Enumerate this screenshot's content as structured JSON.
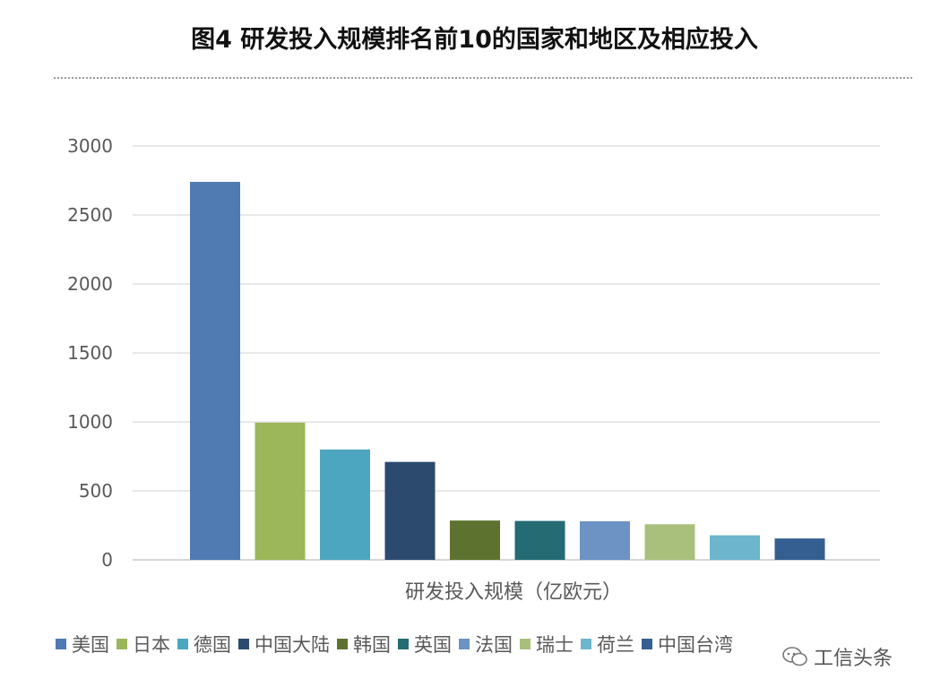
{
  "title": "图4 研发投入规模排名前10的国家和地区及相应投入",
  "watermark": "工信头条",
  "chart_data": {
    "type": "bar",
    "title": "图4 研发投入规模排名前10的国家和地区及相应投入",
    "xlabel": "研发投入规模（亿欧元）",
    "ylabel": "",
    "ylim": [
      0,
      3000
    ],
    "yticks": [
      "0",
      "500",
      "1000",
      "1500",
      "2000",
      "2500",
      "3000"
    ],
    "grid": true,
    "legend_position": "bottom",
    "categories": [
      "美国",
      "日本",
      "德国",
      "中国大陆",
      "韩国",
      "英国",
      "法国",
      "瑞士",
      "荷兰",
      "中国台湾"
    ],
    "values": [
      2740,
      995,
      800,
      710,
      285,
      282,
      280,
      258,
      178,
      155
    ],
    "colors": [
      "#4f7ab2",
      "#9bb75a",
      "#4da6bf",
      "#2b4a6e",
      "#5e722f",
      "#246b73",
      "#6c93c4",
      "#a8c07c",
      "#6db5cc",
      "#355f91"
    ]
  }
}
